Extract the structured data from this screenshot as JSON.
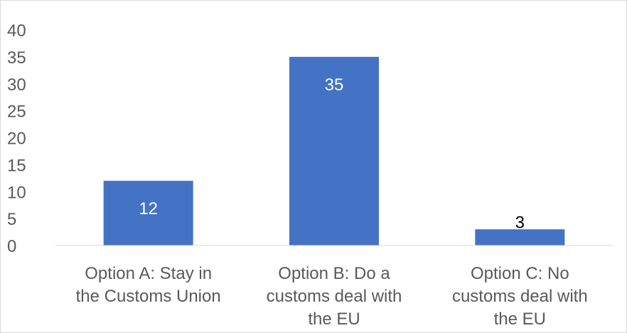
{
  "chart_data": {
    "type": "bar",
    "title": "",
    "xlabel": "",
    "ylabel": "",
    "categories": [
      [
        "Option A: Stay in",
        "the Customs Union"
      ],
      [
        "Option B: Do a",
        "customs deal with",
        "the EU"
      ],
      [
        "Option C: No",
        "customs deal with",
        "the EU"
      ]
    ],
    "values": [
      12,
      35,
      3
    ],
    "data_labels": [
      "12",
      "35",
      "3"
    ],
    "ylim": [
      0,
      40
    ],
    "yticks": [
      0,
      5,
      10,
      15,
      20,
      25,
      30,
      35,
      40
    ],
    "grid": false,
    "legend": "none",
    "colors": {
      "bar": "#4472C4",
      "label_inside": "#ffffff",
      "label_outside": "#000000",
      "axis_text": "#595959",
      "axis_line": "#d9d9d9"
    }
  }
}
